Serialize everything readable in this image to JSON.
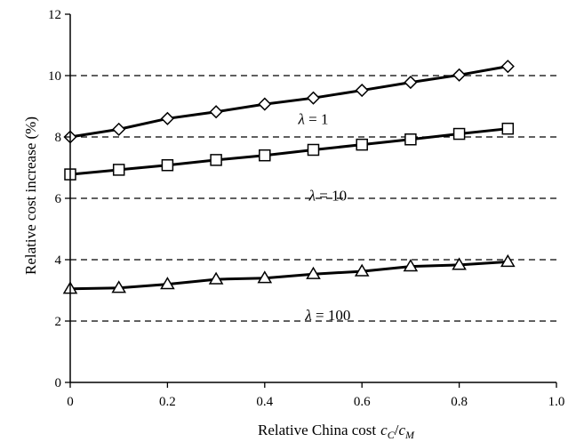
{
  "chart_data": {
    "type": "line",
    "xlabel": "Relative China cost",
    "xlabel_math": {
      "base1": "c",
      "sub1": "C",
      "slash": "/",
      "base2": "c",
      "sub2": "M"
    },
    "ylabel": "Relative cost increase (%)",
    "xlim": [
      0,
      1.0
    ],
    "ylim": [
      0,
      12
    ],
    "xticks": [
      "0",
      "0.2",
      "0.4",
      "0.6",
      "0.8",
      "1.0"
    ],
    "yticks": [
      "0",
      "2",
      "4",
      "6",
      "8",
      "10",
      "12"
    ],
    "grid": "horizontal dashed",
    "x": [
      0,
      0.1,
      0.2,
      0.3,
      0.4,
      0.5,
      0.6,
      0.7,
      0.8,
      0.9
    ],
    "series": [
      {
        "name": "λ = 1",
        "marker": "diamond",
        "values": [
          8.0,
          8.25,
          8.6,
          8.82,
          9.07,
          9.27,
          9.52,
          9.78,
          10.02,
          10.3
        ],
        "label_pos": [
          0.5,
          8.6
        ]
      },
      {
        "name": "λ = 10",
        "marker": "square",
        "values": [
          6.78,
          6.93,
          7.08,
          7.25,
          7.4,
          7.58,
          7.75,
          7.92,
          8.1,
          8.27
        ],
        "label_pos": [
          0.53,
          6.1
        ]
      },
      {
        "name": "λ = 100",
        "marker": "triangle",
        "values": [
          3.05,
          3.08,
          3.2,
          3.36,
          3.4,
          3.53,
          3.62,
          3.78,
          3.83,
          3.93
        ],
        "label_pos": [
          0.53,
          2.2
        ]
      }
    ],
    "colors": {
      "line": "#000000",
      "marker_fill": "#ffffff",
      "grid": "#000000"
    }
  }
}
